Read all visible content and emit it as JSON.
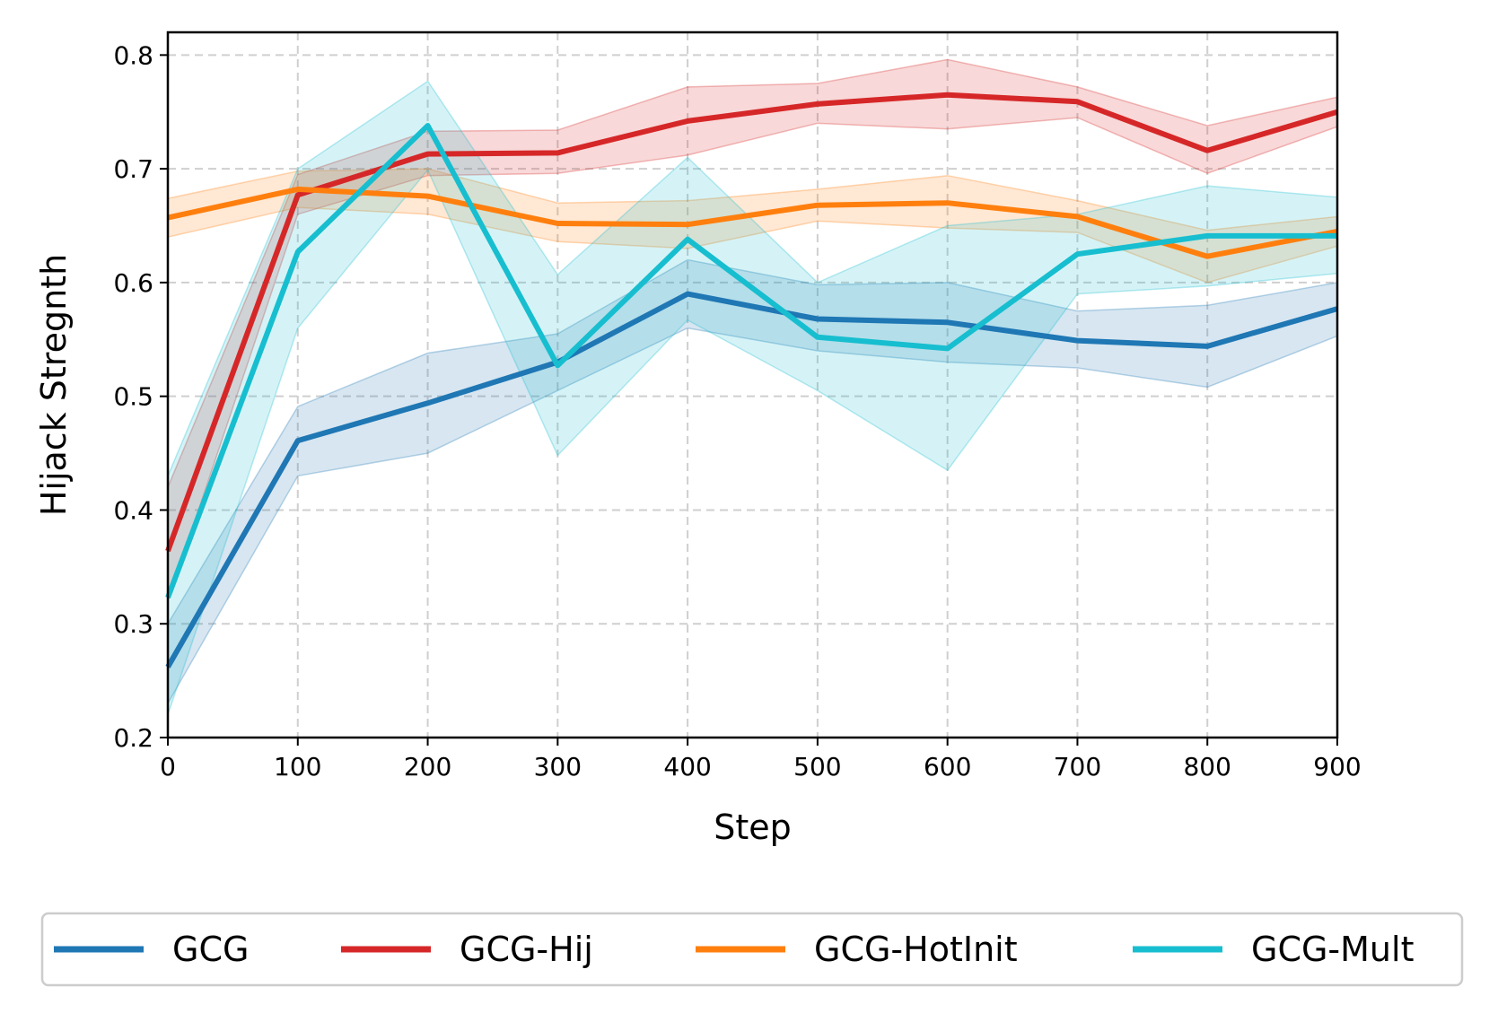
{
  "chart_data": {
    "type": "line",
    "xlabel": "Step",
    "ylabel": "Hijack Stregnth",
    "xlim": [
      0,
      900
    ],
    "ylim": [
      0.2,
      0.82
    ],
    "x": [
      0,
      100,
      200,
      300,
      400,
      500,
      600,
      700,
      800,
      900
    ],
    "xticks": [
      "0",
      "100",
      "200",
      "300",
      "400",
      "500",
      "600",
      "700",
      "800",
      "900"
    ],
    "yticks": [
      "0.2",
      "0.3",
      "0.4",
      "0.5",
      "0.6",
      "0.7",
      "0.8"
    ],
    "grid": true,
    "legend_position": "bottom",
    "series": [
      {
        "name": "GCG",
        "color": "#1f77b4",
        "values": [
          0.262,
          0.461,
          0.494,
          0.53,
          0.59,
          0.568,
          0.565,
          0.549,
          0.544,
          0.577
        ],
        "upper": [
          0.3,
          0.491,
          0.538,
          0.555,
          0.62,
          0.598,
          0.6,
          0.575,
          0.58,
          0.6
        ],
        "lower": [
          0.23,
          0.43,
          0.45,
          0.505,
          0.56,
          0.54,
          0.53,
          0.525,
          0.508,
          0.553
        ]
      },
      {
        "name": "GCG-Hij",
        "color": "#d62728",
        "values": [
          0.364,
          0.677,
          0.713,
          0.714,
          0.742,
          0.757,
          0.765,
          0.759,
          0.716,
          0.75
        ],
        "upper": [
          0.42,
          0.695,
          0.733,
          0.734,
          0.772,
          0.775,
          0.796,
          0.772,
          0.738,
          0.763
        ],
        "lower": [
          0.32,
          0.66,
          0.694,
          0.696,
          0.712,
          0.74,
          0.735,
          0.745,
          0.696,
          0.737
        ]
      },
      {
        "name": "GCG-HotInit",
        "color": "#ff7f0e",
        "values": [
          0.657,
          0.682,
          0.676,
          0.652,
          0.651,
          0.668,
          0.67,
          0.658,
          0.623,
          0.645
        ],
        "upper": [
          0.674,
          0.698,
          0.7,
          0.67,
          0.672,
          0.682,
          0.694,
          0.672,
          0.646,
          0.658
        ],
        "lower": [
          0.64,
          0.666,
          0.66,
          0.636,
          0.63,
          0.654,
          0.648,
          0.644,
          0.6,
          0.632
        ]
      },
      {
        "name": "GCG-Mult",
        "color": "#17becf",
        "values": [
          0.323,
          0.627,
          0.738,
          0.527,
          0.638,
          0.552,
          0.542,
          0.625,
          0.641,
          0.641
        ],
        "upper": [
          0.43,
          0.7,
          0.777,
          0.607,
          0.71,
          0.6,
          0.65,
          0.66,
          0.685,
          0.675
        ],
        "lower": [
          0.22,
          0.56,
          0.699,
          0.448,
          0.567,
          0.505,
          0.435,
          0.59,
          0.597,
          0.608
        ]
      }
    ]
  }
}
